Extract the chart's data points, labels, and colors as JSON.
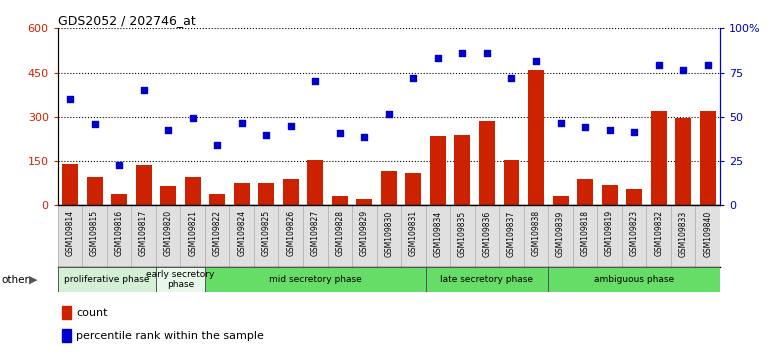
{
  "title": "GDS2052 / 202746_at",
  "samples": [
    "GSM109814",
    "GSM109815",
    "GSM109816",
    "GSM109817",
    "GSM109820",
    "GSM109821",
    "GSM109822",
    "GSM109824",
    "GSM109825",
    "GSM109826",
    "GSM109827",
    "GSM109828",
    "GSM109829",
    "GSM109830",
    "GSM109831",
    "GSM109834",
    "GSM109835",
    "GSM109836",
    "GSM109837",
    "GSM109838",
    "GSM109839",
    "GSM109818",
    "GSM109819",
    "GSM109823",
    "GSM109832",
    "GSM109833",
    "GSM109840"
  ],
  "counts": [
    140,
    95,
    40,
    135,
    65,
    95,
    40,
    75,
    75,
    90,
    155,
    30,
    20,
    115,
    110,
    235,
    240,
    285,
    155,
    460,
    30,
    90,
    70,
    55,
    320,
    295,
    320
  ],
  "percentiles": [
    360,
    275,
    135,
    390,
    255,
    295,
    205,
    280,
    240,
    270,
    420,
    245,
    230,
    310,
    430,
    500,
    515,
    515,
    430,
    490,
    280,
    265,
    255,
    250,
    475,
    460,
    475
  ],
  "phases": [
    {
      "label": "proliferative phase",
      "start": 0,
      "end": 4,
      "color": "#d4f0d4",
      "light": true
    },
    {
      "label": "early secretory\nphase",
      "start": 4,
      "end": 6,
      "color": "#e8f8e8",
      "light": true
    },
    {
      "label": "mid secretory phase",
      "start": 6,
      "end": 15,
      "color": "#66dd66",
      "light": false
    },
    {
      "label": "late secretory phase",
      "start": 15,
      "end": 20,
      "color": "#66dd66",
      "light": false
    },
    {
      "label": "ambiguous phase",
      "start": 20,
      "end": 27,
      "color": "#66dd66",
      "light": false
    }
  ],
  "bar_color": "#cc2200",
  "dot_color": "#0000cc",
  "ylim_left": [
    0,
    600
  ],
  "ylim_right": [
    0,
    100
  ],
  "yticks_left": [
    0,
    150,
    300,
    450,
    600
  ],
  "yticks_right": [
    0,
    25,
    50,
    75,
    100
  ],
  "ytick_labels_right": [
    "0",
    "25",
    "50",
    "75",
    "100%"
  ],
  "plot_bg": "#ffffff"
}
